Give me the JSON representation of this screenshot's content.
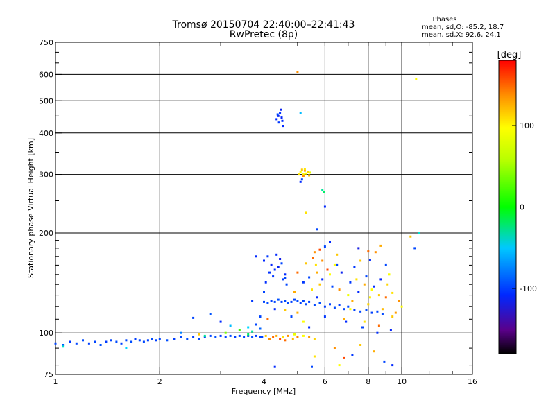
{
  "chart_data": {
    "type": "scatter",
    "title": "Tromsø 20150704 22:40:00–22:41:43",
    "subtitle": "RwPretec (8p)",
    "xlabel": "Frequency [MHz]",
    "ylabel": "Stationary phase Virtual Height [km]",
    "x_scale": "log",
    "y_scale": "log",
    "xlim": [
      1,
      16
    ],
    "ylim": [
      75,
      750
    ],
    "x_ticks": [
      1,
      2,
      4,
      6,
      8,
      10,
      16
    ],
    "x_gridlines": [
      2,
      4,
      6,
      8,
      10
    ],
    "y_ticks": [
      75,
      100,
      200,
      300,
      400,
      500,
      600,
      750
    ],
    "y_gridlines": [
      100,
      200,
      300,
      400,
      500,
      600
    ],
    "grid": true,
    "phase_stats": {
      "heading": "Phases",
      "o_line": "mean, sd,O: -85.2, 18.7",
      "x_line": "mean, sd,X:  92.6, 24.1"
    },
    "colorbar": {
      "label": "[deg]",
      "ticks": [
        100,
        0,
        -100
      ],
      "range": [
        -180,
        180
      ],
      "colormap": "rainbow"
    },
    "phase_colors": {
      "-180": "#000000",
      "-150": "#5a008a",
      "-110": "#0028ff",
      "-50": "#00d8ff",
      "0": "#00ff00",
      "60": "#b8ff00",
      "100": "#ffff00",
      "140": "#ff9000",
      "180": "#ff0000"
    },
    "series": [
      {
        "points": [
          [
            1.0,
            93,
            -100
          ],
          [
            1.05,
            92,
            -95
          ],
          [
            1.1,
            94,
            -105
          ],
          [
            1.15,
            93,
            -100
          ],
          [
            1.2,
            95,
            -98
          ],
          [
            1.25,
            93,
            -102
          ],
          [
            1.3,
            94,
            -100
          ],
          [
            1.35,
            92,
            -96
          ],
          [
            1.4,
            94,
            -104
          ],
          [
            1.45,
            95,
            -100
          ],
          [
            1.5,
            94,
            -98
          ],
          [
            1.55,
            93,
            -102
          ],
          [
            1.6,
            95,
            -100
          ],
          [
            1.65,
            94,
            -97
          ],
          [
            1.7,
            96,
            -103
          ],
          [
            1.75,
            95,
            -100
          ],
          [
            1.8,
            94,
            -99
          ],
          [
            1.85,
            95,
            -101
          ],
          [
            1.9,
            96,
            -98
          ],
          [
            1.95,
            95,
            -102
          ],
          [
            2.0,
            96,
            -100
          ],
          [
            2.1,
            95,
            -97
          ],
          [
            2.2,
            96,
            -103
          ],
          [
            2.3,
            97,
            -100
          ],
          [
            2.4,
            96,
            -98
          ],
          [
            2.5,
            97,
            -102
          ],
          [
            2.6,
            96,
            -99
          ],
          [
            2.7,
            97,
            -101
          ],
          [
            2.8,
            98,
            -100
          ],
          [
            2.9,
            97,
            -96
          ],
          [
            3.0,
            98,
            -104
          ],
          [
            3.1,
            97,
            -100
          ],
          [
            3.2,
            98,
            -98
          ],
          [
            3.3,
            97,
            -102
          ],
          [
            3.4,
            98,
            -100
          ],
          [
            3.5,
            97,
            -99
          ],
          [
            3.6,
            98,
            -101
          ],
          [
            3.7,
            97,
            -97
          ],
          [
            3.8,
            98,
            -103
          ],
          [
            3.9,
            97,
            -100
          ],
          [
            1.05,
            91,
            -40
          ],
          [
            1.6,
            90,
            -50
          ],
          [
            2.7,
            98,
            -30
          ],
          [
            3.6,
            99,
            -20
          ]
        ]
      },
      {
        "points": [
          [
            2.5,
            111,
            -100
          ],
          [
            2.8,
            114,
            -95
          ],
          [
            3.0,
            108,
            -110
          ],
          [
            3.2,
            105,
            -60
          ],
          [
            3.4,
            102,
            20
          ],
          [
            3.7,
            101,
            -30
          ],
          [
            3.9,
            103,
            -90
          ],
          [
            2.3,
            100,
            -80
          ],
          [
            2.6,
            99,
            120
          ],
          [
            3.1,
            100,
            40
          ]
        ]
      },
      {
        "points": [
          [
            3.95,
            97,
            -100
          ],
          [
            4.05,
            98,
            120
          ],
          [
            4.15,
            96,
            140
          ],
          [
            4.25,
            97,
            150
          ],
          [
            4.35,
            98,
            130
          ],
          [
            4.45,
            96,
            160
          ],
          [
            4.55,
            97,
            110
          ],
          [
            4.7,
            98,
            140
          ],
          [
            4.85,
            96,
            125
          ],
          [
            5.0,
            97,
            145
          ],
          [
            5.2,
            98,
            100
          ],
          [
            5.4,
            97,
            135
          ],
          [
            5.6,
            96,
            115
          ],
          [
            4.6,
            95,
            150
          ],
          [
            4.9,
            99,
            90
          ]
        ]
      },
      {
        "points": [
          [
            4.0,
            124,
            -100
          ],
          [
            4.1,
            123,
            -98
          ],
          [
            4.2,
            125,
            -102
          ],
          [
            4.3,
            124,
            -100
          ],
          [
            4.4,
            126,
            -97
          ],
          [
            4.5,
            124,
            -103
          ],
          [
            4.6,
            125,
            -100
          ],
          [
            4.7,
            123,
            -99
          ],
          [
            4.8,
            124,
            -101
          ],
          [
            4.9,
            126,
            -100
          ],
          [
            5.0,
            125,
            -98
          ],
          [
            5.1,
            123,
            -102
          ],
          [
            5.2,
            125,
            -100
          ],
          [
            5.3,
            122,
            -99
          ],
          [
            5.4,
            124,
            -101
          ],
          [
            5.6,
            121,
            -100
          ],
          [
            5.8,
            123,
            -97
          ],
          [
            6.0,
            120,
            -103
          ],
          [
            6.2,
            122,
            -100
          ],
          [
            6.4,
            119,
            -98
          ],
          [
            6.6,
            121,
            -102
          ],
          [
            6.8,
            118,
            -100
          ],
          [
            7.0,
            120,
            -99
          ],
          [
            7.3,
            117,
            -101
          ],
          [
            7.6,
            116,
            -100
          ],
          [
            7.9,
            117,
            -98
          ],
          [
            8.2,
            115,
            -102
          ],
          [
            8.5,
            116,
            -100
          ],
          [
            8.8,
            114,
            -99
          ]
        ]
      },
      {
        "points": [
          [
            4.0,
            165,
            -110
          ],
          [
            4.1,
            170,
            -105
          ],
          [
            4.2,
            160,
            -112
          ],
          [
            4.3,
            155,
            -108
          ],
          [
            4.4,
            158,
            -115
          ],
          [
            4.5,
            162,
            -100
          ],
          [
            4.6,
            150,
            -110
          ],
          [
            4.25,
            148,
            -105
          ],
          [
            4.45,
            167,
            -118
          ],
          [
            4.55,
            145,
            -102
          ],
          [
            4.35,
            172,
            -110
          ],
          [
            4.15,
            152,
            -107
          ],
          [
            4.65,
            140,
            -100
          ],
          [
            4.05,
            142,
            -108
          ]
        ]
      },
      {
        "points": [
          [
            4.35,
            440,
            -110
          ],
          [
            4.4,
            450,
            -115
          ],
          [
            4.45,
            460,
            -108
          ],
          [
            4.5,
            445,
            -112
          ],
          [
            4.42,
            430,
            -105
          ],
          [
            4.55,
            420,
            -110
          ],
          [
            4.38,
            455,
            -100
          ],
          [
            4.48,
            470,
            -115
          ],
          [
            4.52,
            435,
            -108
          ]
        ]
      },
      {
        "points": [
          [
            5.05,
            300,
            110
          ],
          [
            5.1,
            305,
            95
          ],
          [
            5.15,
            310,
            120
          ],
          [
            5.2,
            300,
            105
          ],
          [
            5.25,
            308,
            130
          ],
          [
            5.3,
            302,
            100
          ],
          [
            5.35,
            306,
            115
          ],
          [
            5.4,
            298,
            125
          ],
          [
            5.45,
            304,
            90
          ],
          [
            5.2,
            296,
            140
          ],
          [
            5.25,
            312,
            108
          ],
          [
            5.1,
            285,
            -110
          ],
          [
            5.15,
            290,
            -100
          ]
        ]
      },
      {
        "points": [
          [
            5.0,
            610,
            140
          ],
          [
            5.1,
            460,
            -60
          ],
          [
            5.3,
            230,
            110
          ],
          [
            5.9,
            270,
            -30
          ],
          [
            6.0,
            240,
            -110
          ],
          [
            5.95,
            265,
            -20
          ],
          [
            5.7,
            205,
            -100
          ],
          [
            11.0,
            580,
            100
          ],
          [
            11.2,
            200,
            -40
          ],
          [
            10.6,
            195,
            120
          ],
          [
            10.9,
            180,
            -100
          ]
        ]
      },
      {
        "points": [
          [
            5.8,
            140,
            120
          ],
          [
            6.2,
            150,
            100
          ],
          [
            6.6,
            135,
            140
          ],
          [
            7.0,
            130,
            90
          ],
          [
            7.4,
            145,
            110
          ],
          [
            7.8,
            140,
            130
          ],
          [
            8.2,
            135,
            100
          ],
          [
            8.6,
            130,
            120
          ],
          [
            9.0,
            128,
            150
          ],
          [
            9.4,
            132,
            110
          ],
          [
            9.8,
            125,
            140
          ],
          [
            10.0,
            120,
            100
          ],
          [
            7.2,
            125,
            130
          ],
          [
            8.0,
            122,
            115
          ],
          [
            8.8,
            118,
            125
          ],
          [
            9.6,
            115,
            135
          ],
          [
            6.4,
            160,
            100
          ],
          [
            7.6,
            165,
            120
          ],
          [
            8.4,
            175,
            140
          ],
          [
            9.2,
            150,
            95
          ],
          [
            6.8,
            110,
            130
          ],
          [
            7.8,
            108,
            110
          ],
          [
            8.6,
            105,
            150
          ],
          [
            9.4,
            112,
            120
          ],
          [
            5.9,
            165,
            140
          ],
          [
            6.1,
            155,
            160
          ],
          [
            6.5,
            172,
            120
          ],
          [
            7.1,
            118,
            100
          ],
          [
            8.1,
            128,
            105
          ],
          [
            9.1,
            140,
            115
          ]
        ]
      },
      {
        "points": [
          [
            5.9,
            145,
            -110
          ],
          [
            6.3,
            138,
            -100
          ],
          [
            6.7,
            152,
            -115
          ],
          [
            7.1,
            142,
            -105
          ],
          [
            7.5,
            133,
            -110
          ],
          [
            7.9,
            148,
            -100
          ],
          [
            8.3,
            138,
            -108
          ],
          [
            8.7,
            145,
            -112
          ],
          [
            6.5,
            160,
            -100
          ],
          [
            7.3,
            158,
            -105
          ],
          [
            8.1,
            166,
            -110
          ],
          [
            9.0,
            160,
            -100
          ],
          [
            6.0,
            112,
            -105
          ],
          [
            6.9,
            108,
            -110
          ],
          [
            7.7,
            104,
            -100
          ],
          [
            8.5,
            100,
            -108
          ],
          [
            9.3,
            102,
            -112
          ],
          [
            8.9,
            82,
            -100
          ],
          [
            9.4,
            80,
            -110
          ],
          [
            7.2,
            86,
            -105
          ],
          [
            6.4,
            90,
            140
          ],
          [
            6.8,
            84,
            160
          ],
          [
            7.6,
            92,
            120
          ],
          [
            8.3,
            88,
            130
          ],
          [
            5.6,
            85,
            110
          ],
          [
            5.5,
            79,
            -100
          ],
          [
            4.3,
            79,
            -110
          ],
          [
            6.6,
            80,
            100
          ]
        ]
      },
      {
        "points": [
          [
            5.6,
            175,
            140
          ],
          [
            5.8,
            178,
            160
          ],
          [
            6.0,
            182,
            -100
          ],
          [
            7.5,
            180,
            -120
          ],
          [
            8.0,
            176,
            150
          ],
          [
            8.7,
            183,
            130
          ],
          [
            6.2,
            188,
            -110
          ],
          [
            5.55,
            168,
            150
          ],
          [
            5.65,
            160,
            110
          ],
          [
            5.7,
            152,
            130
          ]
        ]
      },
      {
        "points": [
          [
            3.8,
            170,
            -110
          ],
          [
            4.0,
            133,
            -100
          ],
          [
            3.7,
            125,
            -105
          ],
          [
            3.9,
            112,
            -100
          ],
          [
            4.1,
            110,
            150
          ],
          [
            4.3,
            118,
            -110
          ],
          [
            4.6,
            117,
            120
          ],
          [
            4.8,
            112,
            -100
          ],
          [
            5.0,
            115,
            130
          ],
          [
            5.2,
            108,
            100
          ],
          [
            5.4,
            104,
            -110
          ],
          [
            3.6,
            104,
            -50
          ],
          [
            3.8,
            106,
            -100
          ],
          [
            4.6,
            146,
            -100
          ],
          [
            4.9,
            133,
            130
          ],
          [
            5.2,
            142,
            -105
          ],
          [
            5.5,
            135,
            110
          ],
          [
            5.7,
            128,
            -110
          ],
          [
            5.0,
            152,
            150
          ],
          [
            5.3,
            162,
            120
          ],
          [
            5.4,
            147,
            -100
          ]
        ]
      }
    ]
  }
}
